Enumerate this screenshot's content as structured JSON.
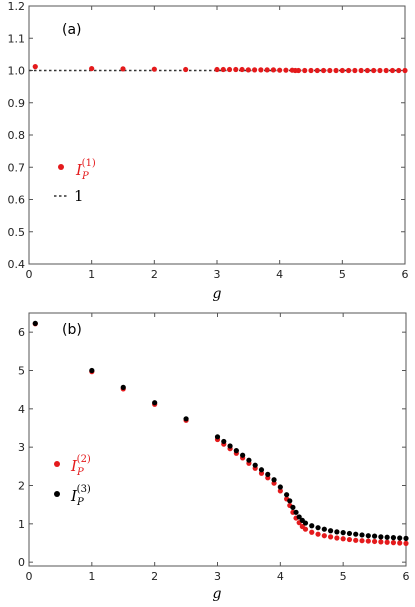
{
  "chart_data": [
    {
      "type": "scatter",
      "panel_label": "(a)",
      "xlabel": "g",
      "ylabel": "",
      "xlim": [
        0,
        6
      ],
      "ylim": [
        0.4,
        1.2
      ],
      "xticks": [
        "0",
        "1",
        "2",
        "3",
        "4",
        "5",
        "6"
      ],
      "yticks": [
        "0.4",
        "0.5",
        "0.6",
        "0.7",
        "0.8",
        "0.9",
        "1.0",
        "1.1",
        "1.2"
      ],
      "grid": false,
      "legend_position": "left",
      "reference_line": {
        "y": 1,
        "label": "1",
        "style": "dashed",
        "color": "#333333"
      },
      "series": [
        {
          "name_base": "I",
          "name_sub": "P",
          "name_sup": "(1)",
          "color": "#e41a1c",
          "x": [
            0.1,
            1.0,
            1.5,
            2.0,
            2.5,
            3.0,
            3.1,
            3.2,
            3.3,
            3.4,
            3.5,
            3.6,
            3.7,
            3.8,
            3.9,
            4.0,
            4.1,
            4.2,
            4.25,
            4.3,
            4.4,
            4.5,
            4.6,
            4.7,
            4.8,
            4.9,
            5.0,
            5.1,
            5.2,
            5.3,
            5.4,
            5.5,
            5.6,
            5.7,
            5.8,
            5.9,
            6.0
          ],
          "y": [
            1.012,
            1.006,
            1.005,
            1.004,
            1.003,
            1.003,
            1.003,
            1.003,
            1.003,
            1.003,
            1.002,
            1.002,
            1.002,
            1.002,
            1.002,
            1.001,
            1.001,
            1.001,
            1.0,
            1.0,
            1.0,
            1.0,
            1.0,
            1.0,
            1.0,
            1.0,
            1.0,
            1.0,
            1.0,
            1.0,
            1.0,
            1.0,
            1.0,
            1.0,
            1.0,
            1.0,
            1.0
          ]
        }
      ]
    },
    {
      "type": "scatter",
      "panel_label": "(b)",
      "xlabel": "g",
      "ylabel": "",
      "xlim": [
        0,
        6
      ],
      "ylim": [
        -0.1,
        6.5
      ],
      "xticks": [
        "0",
        "1",
        "2",
        "3",
        "4",
        "5",
        "6"
      ],
      "yticks": [
        "0",
        "1",
        "2",
        "3",
        "4",
        "5",
        "6"
      ],
      "grid": false,
      "legend_position": "left",
      "x": [
        0.1,
        1.0,
        1.5,
        2.0,
        2.5,
        3.0,
        3.1,
        3.2,
        3.3,
        3.4,
        3.5,
        3.6,
        3.7,
        3.8,
        3.9,
        4.0,
        4.1,
        4.15,
        4.2,
        4.25,
        4.3,
        4.35,
        4.4,
        4.5,
        4.6,
        4.7,
        4.8,
        4.9,
        5.0,
        5.1,
        5.2,
        5.3,
        5.4,
        5.5,
        5.6,
        5.7,
        5.8,
        5.9,
        6.0
      ],
      "series": [
        {
          "name_base": "I",
          "name_sub": "P",
          "name_sup": "(2)",
          "color": "#e41a1c",
          "y": [
            6.22,
            4.97,
            4.52,
            4.12,
            3.7,
            3.2,
            3.08,
            2.96,
            2.84,
            2.72,
            2.58,
            2.45,
            2.32,
            2.2,
            2.06,
            1.86,
            1.65,
            1.48,
            1.3,
            1.15,
            1.03,
            0.93,
            0.86,
            0.78,
            0.73,
            0.69,
            0.66,
            0.63,
            0.61,
            0.59,
            0.57,
            0.56,
            0.55,
            0.54,
            0.53,
            0.52,
            0.51,
            0.5,
            0.49
          ]
        },
        {
          "name_base": "I",
          "name_sub": "P",
          "name_sup": "(3)",
          "color": "#000000",
          "y": [
            6.23,
            5.0,
            4.56,
            4.16,
            3.74,
            3.27,
            3.15,
            3.03,
            2.91,
            2.79,
            2.66,
            2.53,
            2.41,
            2.29,
            2.15,
            1.96,
            1.76,
            1.6,
            1.43,
            1.3,
            1.18,
            1.09,
            1.02,
            0.95,
            0.9,
            0.86,
            0.82,
            0.79,
            0.77,
            0.75,
            0.73,
            0.71,
            0.69,
            0.68,
            0.66,
            0.65,
            0.64,
            0.63,
            0.62
          ]
        }
      ]
    }
  ]
}
